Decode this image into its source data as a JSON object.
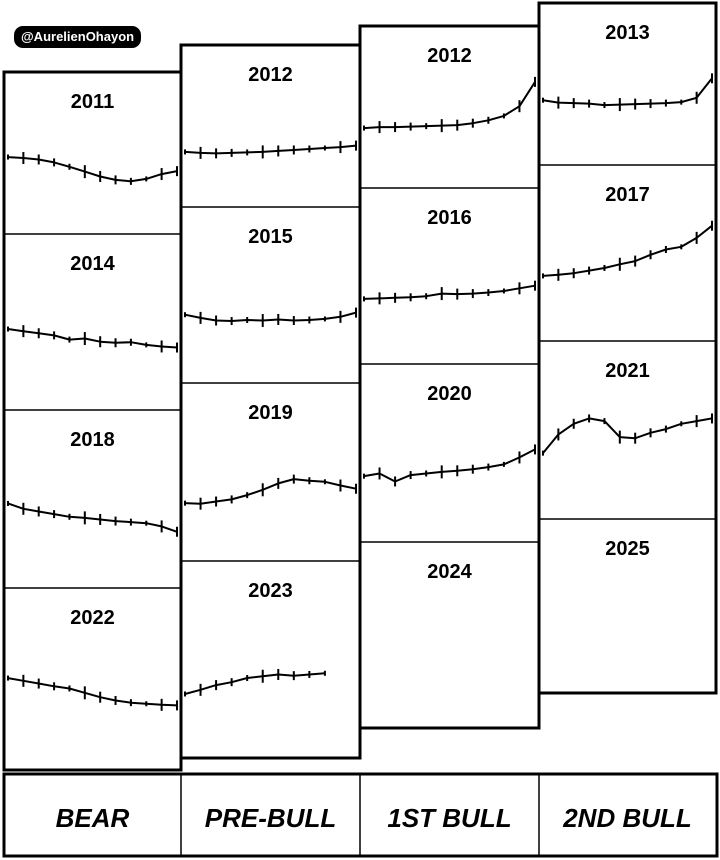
{
  "watermark": "@AurelienOhayon",
  "phases": [
    "BEAR",
    "PRE-BULL",
    "1ST BULL",
    "2ND BULL"
  ],
  "chart_data": {
    "type": "line",
    "description_free": true,
    "columns": [
      {
        "phase": "BEAR",
        "cells": [
          {
            "year": "2011",
            "series": [
              0.35,
              0.33,
              0.3,
              0.24,
              0.15,
              0.05,
              -0.05,
              -0.12,
              -0.15,
              -0.1,
              0.0,
              0.06
            ]
          },
          {
            "year": "2014",
            "series": [
              0.3,
              0.26,
              0.22,
              0.18,
              0.1,
              0.12,
              0.06,
              0.04,
              0.05,
              0.0,
              -0.03,
              -0.05
            ]
          },
          {
            "year": "2018",
            "series": [
              0.35,
              0.25,
              0.2,
              0.15,
              0.1,
              0.08,
              0.05,
              0.02,
              0.0,
              -0.02,
              -0.08,
              -0.18
            ]
          },
          {
            "year": "2022",
            "series": [
              0.45,
              0.4,
              0.35,
              0.3,
              0.26,
              0.18,
              0.1,
              0.04,
              0.0,
              -0.02,
              -0.04,
              -0.05
            ]
          }
        ]
      },
      {
        "phase": "PRE-BULL",
        "cells": [
          {
            "year": "2012",
            "series": [
              -0.1,
              -0.12,
              -0.13,
              -0.12,
              -0.11,
              -0.1,
              -0.08,
              -0.06,
              -0.04,
              -0.02,
              0.0,
              0.03
            ]
          },
          {
            "year": "2015",
            "series": [
              0.06,
              0.0,
              -0.05,
              -0.06,
              -0.04,
              -0.05,
              -0.03,
              -0.05,
              -0.04,
              -0.02,
              0.02,
              0.1
            ]
          },
          {
            "year": "2019",
            "series": [
              -0.15,
              -0.16,
              -0.12,
              -0.08,
              0.0,
              0.1,
              0.22,
              0.3,
              0.27,
              0.25,
              0.18,
              0.12
            ]
          },
          {
            "year": "2023",
            "series": [
              -0.15,
              -0.08,
              0.0,
              0.05,
              0.12,
              0.15,
              0.18,
              0.16,
              0.18,
              0.2
            ]
          }
        ]
      },
      {
        "phase": "1ST BULL",
        "cells": [
          {
            "year": "2012",
            "series": [
              0.0,
              0.02,
              0.02,
              0.03,
              0.04,
              0.05,
              0.06,
              0.1,
              0.16,
              0.25,
              0.45,
              0.95
            ]
          },
          {
            "year": "2016",
            "series": [
              0.0,
              0.01,
              0.02,
              0.03,
              0.05,
              0.1,
              0.09,
              0.1,
              0.12,
              0.15,
              0.2,
              0.25
            ]
          },
          {
            "year": "2020",
            "series": [
              0.0,
              0.05,
              -0.1,
              0.02,
              0.05,
              0.08,
              0.1,
              0.13,
              0.17,
              0.22,
              0.35,
              0.5
            ]
          },
          {
            "year": "2024",
            "series": []
          }
        ]
      },
      {
        "phase": "2ND BULL",
        "cells": [
          {
            "year": "2013",
            "series": [
              0.1,
              0.05,
              0.04,
              0.03,
              0.0,
              0.01,
              0.02,
              0.03,
              0.04,
              0.06,
              0.15,
              0.55
            ]
          },
          {
            "year": "2017",
            "series": [
              0.0,
              0.02,
              0.05,
              0.1,
              0.15,
              0.22,
              0.28,
              0.4,
              0.5,
              0.55,
              0.72,
              0.95
            ]
          },
          {
            "year": "2021",
            "series": [
              0.0,
              0.35,
              0.55,
              0.65,
              0.6,
              0.3,
              0.28,
              0.38,
              0.45,
              0.55,
              0.6,
              0.65
            ]
          },
          {
            "year": "2025",
            "series": []
          }
        ]
      }
    ]
  }
}
